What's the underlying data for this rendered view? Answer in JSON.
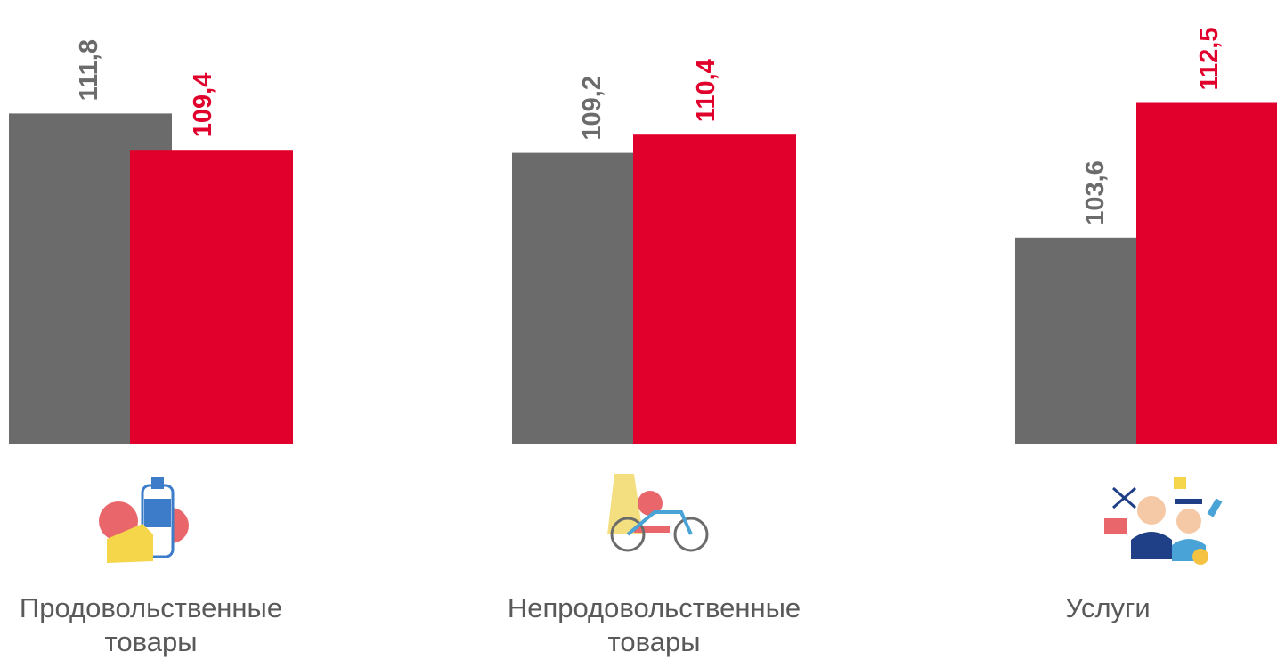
{
  "chart_data": {
    "type": "bar",
    "categories": [
      "Продовольственные товары",
      "Непродовольственные товары",
      "Услуги"
    ],
    "series": [
      {
        "color": "#6b6b6b",
        "values": [
          111.8,
          109.2,
          103.6
        ],
        "value_labels": [
          "111,8",
          "109,2",
          "103,6"
        ]
      },
      {
        "color": "#e0002b",
        "values": [
          109.4,
          110.4,
          112.5
        ],
        "value_labels": [
          "109,4",
          "110,4",
          "112,5"
        ]
      }
    ],
    "ylim": [
      90,
      113
    ]
  }
}
